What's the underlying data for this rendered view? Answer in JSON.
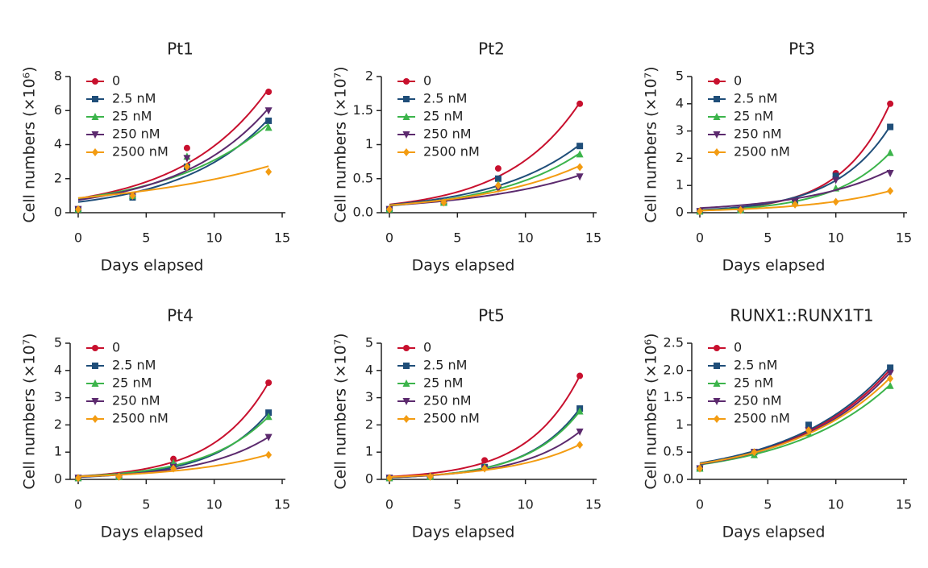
{
  "chart_data": [
    {
      "type": "scatter",
      "title": "Pt1",
      "xlabel": "Days elapsed",
      "ylabel": "Cell numbers (×10⁶)",
      "x": [
        0,
        4,
        8,
        14
      ],
      "xlim": [
        0,
        15
      ],
      "xticks": [
        0,
        5,
        10,
        15
      ],
      "ylim": [
        0,
        8
      ],
      "yticks": [
        0,
        2,
        4,
        6,
        8
      ],
      "legend": "upper left",
      "fit": "exponential",
      "series": [
        {
          "name": "0",
          "color": "#c8102e",
          "marker": "circle",
          "values": [
            0.2,
            1.0,
            3.8,
            7.1
          ]
        },
        {
          "name": "2.5 nM",
          "color": "#1f4e79",
          "marker": "square",
          "values": [
            0.2,
            0.9,
            2.7,
            5.4
          ]
        },
        {
          "name": "25 nM",
          "color": "#3cb44b",
          "marker": "triangle-up",
          "values": [
            0.2,
            1.0,
            3.3,
            5.0
          ]
        },
        {
          "name": "250 nM",
          "color": "#5c2a6e",
          "marker": "triangle-down",
          "values": [
            0.2,
            1.0,
            3.2,
            6.0
          ]
        },
        {
          "name": "2500 nM",
          "color": "#f39c12",
          "marker": "diamond",
          "values": [
            0.2,
            1.0,
            2.7,
            2.4
          ]
        }
      ]
    },
    {
      "type": "scatter",
      "title": "Pt2",
      "xlabel": "Days elapsed",
      "ylabel": "Cell numbers (×10⁷)",
      "x": [
        0,
        4,
        8,
        14
      ],
      "xlim": [
        0,
        15
      ],
      "xticks": [
        0,
        5,
        10,
        15
      ],
      "ylim": [
        0,
        2
      ],
      "yticks": [
        {
          "value": 0,
          "label": "0.0"
        },
        0.5,
        1,
        1.5,
        2
      ],
      "legend": "upper left",
      "fit": "exponential",
      "series": [
        {
          "name": "0",
          "color": "#c8102e",
          "marker": "circle",
          "values": [
            0.05,
            0.15,
            0.65,
            1.6
          ]
        },
        {
          "name": "2.5 nM",
          "color": "#1f4e79",
          "marker": "square",
          "values": [
            0.05,
            0.15,
            0.5,
            0.98
          ]
        },
        {
          "name": "25 nM",
          "color": "#3cb44b",
          "marker": "triangle-up",
          "values": [
            0.05,
            0.15,
            0.42,
            0.86
          ]
        },
        {
          "name": "250 nM",
          "color": "#5c2a6e",
          "marker": "triangle-down",
          "values": [
            0.05,
            0.15,
            0.35,
            0.53
          ]
        },
        {
          "name": "2500 nM",
          "color": "#f39c12",
          "marker": "diamond",
          "values": [
            0.05,
            0.15,
            0.4,
            0.67
          ]
        }
      ]
    },
    {
      "type": "scatter",
      "title": "Pt3",
      "xlabel": "Days elapsed",
      "ylabel": "Cell numbers (×10⁷)",
      "x": [
        0,
        3,
        7,
        10,
        14
      ],
      "xlim": [
        0,
        15
      ],
      "xticks": [
        0,
        5,
        10,
        15
      ],
      "ylim": [
        0,
        5
      ],
      "yticks": [
        0,
        1,
        2,
        3,
        4,
        5
      ],
      "legend": "upper left",
      "fit": "exponential",
      "series": [
        {
          "name": "0",
          "color": "#c8102e",
          "marker": "circle",
          "values": [
            0.05,
            0.1,
            0.45,
            1.45,
            4.0
          ]
        },
        {
          "name": "2.5 nM",
          "color": "#1f4e79",
          "marker": "square",
          "values": [
            0.05,
            0.1,
            0.45,
            1.35,
            3.15
          ]
        },
        {
          "name": "25 nM",
          "color": "#3cb44b",
          "marker": "triangle-up",
          "values": [
            0.05,
            0.1,
            0.4,
            0.9,
            2.2
          ]
        },
        {
          "name": "250 nM",
          "color": "#5c2a6e",
          "marker": "triangle-down",
          "values": [
            0.05,
            0.1,
            0.4,
            1.2,
            1.45
          ]
        },
        {
          "name": "2500 nM",
          "color": "#f39c12",
          "marker": "diamond",
          "values": [
            0.05,
            0.1,
            0.3,
            0.4,
            0.8
          ]
        }
      ]
    },
    {
      "type": "scatter",
      "title": "Pt4",
      "xlabel": "Days elapsed",
      "ylabel": "Cell numbers (×10⁷)",
      "x": [
        0,
        3,
        7,
        14
      ],
      "xlim": [
        0,
        15
      ],
      "xticks": [
        0,
        5,
        10,
        15
      ],
      "ylim": [
        0,
        5
      ],
      "yticks": [
        0,
        1,
        2,
        3,
        4,
        5
      ],
      "legend": "upper left",
      "fit": "exponential",
      "series": [
        {
          "name": "0",
          "color": "#c8102e",
          "marker": "circle",
          "values": [
            0.05,
            0.1,
            0.75,
            3.55
          ]
        },
        {
          "name": "2.5 nM",
          "color": "#1f4e79",
          "marker": "square",
          "values": [
            0.05,
            0.1,
            0.5,
            2.45
          ]
        },
        {
          "name": "25 nM",
          "color": "#3cb44b",
          "marker": "triangle-up",
          "values": [
            0.05,
            0.1,
            0.6,
            2.3
          ]
        },
        {
          "name": "250 nM",
          "color": "#5c2a6e",
          "marker": "triangle-down",
          "values": [
            0.05,
            0.1,
            0.45,
            1.55
          ]
        },
        {
          "name": "2500 nM",
          "color": "#f39c12",
          "marker": "diamond",
          "values": [
            0.05,
            0.1,
            0.4,
            0.9
          ]
        }
      ]
    },
    {
      "type": "scatter",
      "title": "Pt5",
      "xlabel": "Days elapsed",
      "ylabel": "Cell numbers (×10⁷)",
      "x": [
        0,
        3,
        7,
        14
      ],
      "xlim": [
        0,
        15
      ],
      "xticks": [
        0,
        5,
        10,
        15
      ],
      "ylim": [
        0,
        5
      ],
      "yticks": [
        0,
        1,
        2,
        3,
        4,
        5
      ],
      "legend": "upper left",
      "fit": "exponential",
      "series": [
        {
          "name": "0",
          "color": "#c8102e",
          "marker": "circle",
          "values": [
            0.05,
            0.1,
            0.7,
            3.8
          ]
        },
        {
          "name": "2.5 nM",
          "color": "#1f4e79",
          "marker": "square",
          "values": [
            0.05,
            0.1,
            0.45,
            2.6
          ]
        },
        {
          "name": "25 nM",
          "color": "#3cb44b",
          "marker": "triangle-up",
          "values": [
            0.05,
            0.1,
            0.45,
            2.5
          ]
        },
        {
          "name": "250 nM",
          "color": "#5c2a6e",
          "marker": "triangle-down",
          "values": [
            0.05,
            0.1,
            0.4,
            1.75
          ]
        },
        {
          "name": "2500 nM",
          "color": "#f39c12",
          "marker": "diamond",
          "values": [
            0.05,
            0.1,
            0.4,
            1.27
          ]
        }
      ]
    },
    {
      "type": "scatter",
      "title": "RUNX1::RUNX1T1",
      "xlabel": "Days elapsed",
      "ylabel": "Cell numbers (×10⁶)",
      "x": [
        0,
        4,
        8,
        14
      ],
      "xlim": [
        0,
        15
      ],
      "xticks": [
        0,
        5,
        10,
        15
      ],
      "ylim": [
        0,
        2.5
      ],
      "yticks": [
        {
          "value": 0,
          "label": "0.0"
        },
        0.5,
        1,
        1.5,
        {
          "value": 2,
          "label": "2.0"
        },
        2.5
      ],
      "legend": "upper left",
      "fit": "exponential",
      "series": [
        {
          "name": "0",
          "color": "#c8102e",
          "marker": "circle",
          "values": [
            0.2,
            0.5,
            0.95,
            2.0
          ]
        },
        {
          "name": "2.5 nM",
          "color": "#1f4e79",
          "marker": "square",
          "values": [
            0.2,
            0.5,
            1.0,
            2.05
          ]
        },
        {
          "name": "25 nM",
          "color": "#3cb44b",
          "marker": "triangle-up",
          "values": [
            0.2,
            0.45,
            0.85,
            1.72
          ]
        },
        {
          "name": "250 nM",
          "color": "#5c2a6e",
          "marker": "triangle-down",
          "values": [
            0.2,
            0.5,
            0.9,
            1.95
          ]
        },
        {
          "name": "2500 nM",
          "color": "#f39c12",
          "marker": "diamond",
          "values": [
            0.2,
            0.5,
            0.9,
            1.85
          ]
        }
      ]
    }
  ]
}
